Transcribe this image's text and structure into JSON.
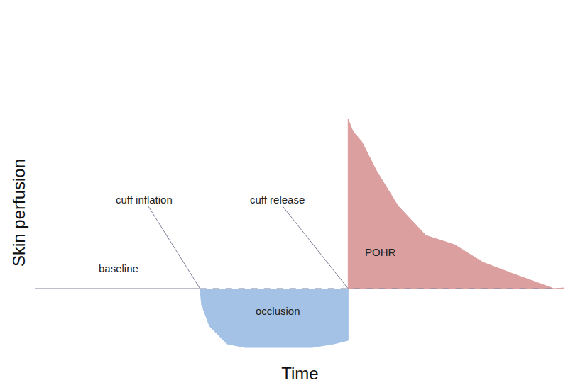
{
  "chart_data": {
    "type": "line",
    "x_label": "Time",
    "y_label": "Skin perfusion",
    "xlim": [
      0,
      100
    ],
    "ylim": [
      -1.03,
      3.17
    ],
    "xticks": [],
    "yticks": [],
    "tick_labels": false,
    "grid": false,
    "color": "#7d7f99",
    "series": [
      {
        "type": "line",
        "x": [
          0,
          31.1
        ],
        "values": [
          0,
          0
        ]
      },
      {
        "type": "area",
        "color": "#a3c2e6",
        "x": [
          31.1,
          31.4,
          32.9,
          36.2,
          39.6,
          52.3,
          56.4,
          59.1,
          59.1
        ],
        "values": [
          0,
          -0.23,
          -0.53,
          -0.78,
          -0.83,
          -0.83,
          -0.78,
          -0.73,
          0
        ]
      },
      {
        "type": "area",
        "color": "#dc9f9f",
        "x": [
          59.1,
          59.1,
          60.0,
          61.7,
          64.4,
          68.5,
          73.8,
          79.2,
          84.6,
          89.9,
          98,
          100
        ],
        "values": [
          0,
          2.39,
          2.22,
          2.07,
          1.67,
          1.17,
          0.75,
          0.62,
          0.37,
          0.22,
          0,
          0.01
        ]
      },
      {
        "type": "line",
        "line_style": "dash",
        "x": [
          31.1,
          98
        ],
        "values": [
          0,
          0
        ]
      }
    ],
    "annotations": [
      {
        "text": "baseline"
      },
      {
        "text": "cuff inflation"
      },
      {
        "text": "cuff release"
      },
      {
        "text": "occlusion"
      },
      {
        "text": "POHR"
      }
    ]
  }
}
